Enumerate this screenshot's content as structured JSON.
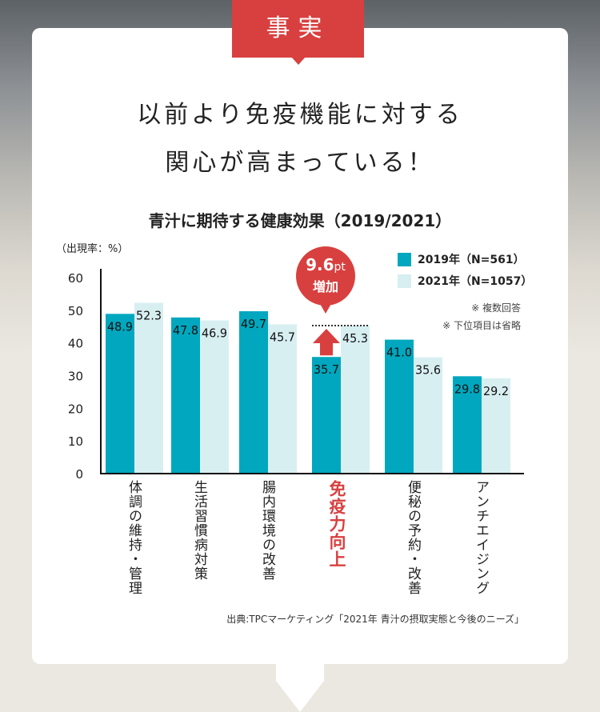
{
  "tag": "事実",
  "headline": [
    "以前より免疫機能に対する",
    "関心が高まっている！"
  ],
  "colors": {
    "accent_red": "#d8403f",
    "series_2019": "#00a7be",
    "series_2021": "#d8eff1"
  },
  "chart_data": {
    "type": "bar",
    "title": "青汁に期待する健康効果（2019/2021）",
    "ylabel": "（出現率：%）",
    "ylim": [
      0,
      60
    ],
    "yticks": [
      "0",
      "10",
      "20",
      "30",
      "40",
      "50",
      "60"
    ],
    "categories": [
      "体調の維持・管理",
      "生活習慣病対策",
      "腸内環境の改善",
      "免疫力向上",
      "便秘の予約・改善",
      "アンチエイジング"
    ],
    "highlight_category": "免疫力向上",
    "series": [
      {
        "name": "2019年（N=561）",
        "values": [
          48.9,
          47.8,
          49.7,
          35.7,
          41.0,
          29.8
        ],
        "labels": [
          "48.9",
          "47.8",
          "49.7",
          "35.7",
          "41.0",
          "29.8"
        ]
      },
      {
        "name": "2021年（N=1057）",
        "values": [
          52.3,
          46.9,
          45.7,
          45.3,
          35.6,
          29.2
        ],
        "labels": [
          "52.3",
          "46.9",
          "45.7",
          "45.3",
          "35.6",
          "29.2"
        ]
      }
    ],
    "grid": false,
    "legend_position": "top-right",
    "annotation": {
      "value": "9.6",
      "unit": "pt",
      "text": "増加"
    },
    "notes": [
      "※ 複数回答",
      "※ 下位項目は省略"
    ],
    "source": "出典:TPCマーケティング「2021年 青汁の摂取実態と今後のニーズ」"
  }
}
